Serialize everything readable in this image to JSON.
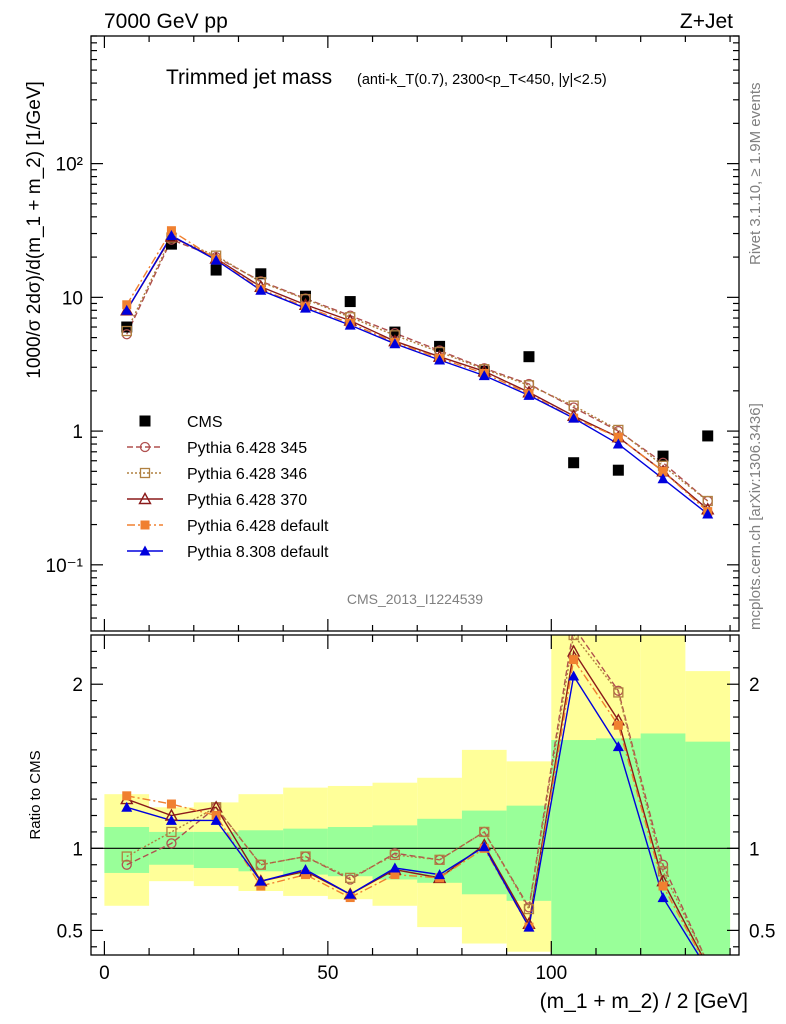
{
  "header": {
    "left": "7000 GeV pp",
    "right": "Z+Jet"
  },
  "side_labels": {
    "rivet": "Rivet 3.1.10, ≥ 1.9M events",
    "mcplots": "mcplots.cern.ch [arXiv:1306.3436]"
  },
  "chart_data": [
    {
      "type": "scatter",
      "title": "Trimmed jet mass",
      "title_detail": "(anti-k_T(0.7), 2300<p_T<450, |y|<2.5)",
      "watermark": "CMS_2013_I1224539",
      "ylabel": "1000/σ 2dσ)/d(m_1 + m_2) [1/GeV]",
      "xlabel": "(m_1 + m_2) / 2 [GeV]",
      "xlim": [
        -3,
        142
      ],
      "ylim": [
        0.032,
        900
      ],
      "yscale": "log",
      "y_ticks": [
        "10⁻¹",
        "1",
        "10",
        "10²"
      ],
      "x_ticks": [
        "0",
        "50",
        "100"
      ],
      "legend_position": "left-lower",
      "x": [
        5,
        15,
        25,
        35,
        45,
        55,
        65,
        75,
        85,
        95,
        105,
        115,
        125,
        135
      ],
      "series": [
        {
          "name": "CMS",
          "color": "#000000",
          "marker": "square-filled",
          "line": "none",
          "values": [
            6.0,
            25.0,
            16.0,
            15.0,
            10.2,
            9.3,
            5.5,
            4.3,
            2.8,
            3.6,
            0.58,
            0.51,
            0.65,
            0.92
          ]
        },
        {
          "name": "Pythia 6.428 345",
          "color": "#b0504f",
          "marker": "circle-open",
          "line": "dashed",
          "values": [
            5.3,
            27.0,
            20.0,
            13.2,
            9.8,
            7.3,
            5.4,
            4.0,
            2.95,
            2.25,
            1.5,
            1.0,
            0.58,
            0.3
          ]
        },
        {
          "name": "Pythia 6.428 346",
          "color": "#b08040",
          "marker": "square-open",
          "line": "dotted",
          "values": [
            5.6,
            28.0,
            20.5,
            13.0,
            9.7,
            7.1,
            5.2,
            3.9,
            2.9,
            2.2,
            1.55,
            1.02,
            0.55,
            0.3
          ]
        },
        {
          "name": "Pythia 6.428 370",
          "color": "#8b1a1a",
          "marker": "triangle-open",
          "line": "solid",
          "values": [
            8.0,
            28.5,
            19.5,
            12.0,
            8.8,
            6.7,
            4.7,
            3.6,
            2.8,
            1.95,
            1.3,
            0.9,
            0.5,
            0.26
          ]
        },
        {
          "name": "Pythia 6.428 default",
          "color": "#f08030",
          "marker": "square-filled",
          "line": "dashdot",
          "values": [
            8.8,
            31.5,
            19.3,
            11.5,
            8.5,
            6.4,
            4.6,
            3.5,
            2.7,
            1.9,
            1.25,
            0.9,
            0.5,
            0.25
          ]
        },
        {
          "name": "Pythia 8.308 default",
          "color": "#0000dd",
          "marker": "triangle-filled",
          "line": "solid",
          "values": [
            8.0,
            29.0,
            19.0,
            11.3,
            8.3,
            6.2,
            4.5,
            3.4,
            2.6,
            1.85,
            1.25,
            0.8,
            0.44,
            0.24
          ]
        }
      ]
    },
    {
      "type": "line",
      "ylabel": "Ratio to CMS",
      "xlim": [
        -3,
        142
      ],
      "ylim": [
        0.35,
        2.3
      ],
      "y_ticks": [
        "0.5",
        "1",
        "2"
      ],
      "reference_line": 1,
      "bands": {
        "edges": [
          0,
          10,
          20,
          30,
          40,
          50,
          60,
          70,
          80,
          90,
          100,
          110,
          120,
          130,
          140
        ],
        "inner": [
          [
            0.85,
            1.13
          ],
          [
            0.9,
            1.1
          ],
          [
            0.88,
            1.1
          ],
          [
            0.86,
            1.11
          ],
          [
            0.84,
            1.12
          ],
          [
            0.83,
            1.13
          ],
          [
            0.81,
            1.14
          ],
          [
            0.79,
            1.18
          ],
          [
            0.72,
            1.23
          ],
          [
            0.68,
            1.26
          ],
          [
            0.32,
            1.66
          ],
          [
            0.32,
            1.67
          ],
          [
            0.32,
            1.7
          ],
          [
            0.35,
            1.65
          ]
        ],
        "outer": [
          [
            0.65,
            1.33
          ],
          [
            0.8,
            1.25
          ],
          [
            0.77,
            1.28
          ],
          [
            0.74,
            1.33
          ],
          [
            0.71,
            1.37
          ],
          [
            0.69,
            1.38
          ],
          [
            0.65,
            1.4
          ],
          [
            0.52,
            1.43
          ],
          [
            0.42,
            1.6
          ],
          [
            0.37,
            1.53
          ],
          [
            0.3,
            2.3
          ],
          [
            0.3,
            2.3
          ],
          [
            0.3,
            2.3
          ],
          [
            0.42,
            2.08
          ]
        ],
        "colors": {
          "inner": "#99ff99",
          "outer": "#ffff99"
        }
      },
      "x": [
        5,
        15,
        25,
        35,
        45,
        55,
        65,
        75,
        85,
        95,
        105,
        115,
        125,
        135
      ],
      "series": [
        {
          "name": "Pythia 6.428 345",
          "color": "#b0504f",
          "marker": "circle-open",
          "line": "dashed",
          "values": [
            0.9,
            1.03,
            1.25,
            0.9,
            0.95,
            0.81,
            0.97,
            0.93,
            1.1,
            0.64,
            2.35,
            1.96,
            0.9,
            0.3
          ]
        },
        {
          "name": "Pythia 6.428 346",
          "color": "#b08040",
          "marker": "square-open",
          "line": "dotted",
          "values": [
            0.95,
            1.1,
            1.25,
            0.9,
            0.95,
            0.82,
            0.96,
            0.93,
            1.1,
            0.63,
            2.3,
            1.95,
            0.86,
            0.3
          ]
        },
        {
          "name": "Pythia 6.428 370",
          "color": "#8b1a1a",
          "marker": "triangle-open",
          "line": "solid",
          "values": [
            1.3,
            1.2,
            1.25,
            0.8,
            0.86,
            0.72,
            0.87,
            0.82,
            1.02,
            0.54,
            2.2,
            1.78,
            0.8,
            0.28
          ]
        },
        {
          "name": "Pythia 6.428 default",
          "color": "#f08030",
          "marker": "square-filled",
          "line": "dashdot",
          "values": [
            1.32,
            1.27,
            1.2,
            0.77,
            0.84,
            0.7,
            0.84,
            0.82,
            1.0,
            0.52,
            2.15,
            1.75,
            0.77,
            0.27
          ]
        },
        {
          "name": "Pythia 8.308 default",
          "color": "#0000dd",
          "marker": "triangle-filled",
          "line": "solid",
          "values": [
            1.25,
            1.17,
            1.17,
            0.8,
            0.87,
            0.72,
            0.88,
            0.84,
            1.01,
            0.52,
            2.05,
            1.62,
            0.7,
            0.26
          ]
        }
      ]
    }
  ]
}
